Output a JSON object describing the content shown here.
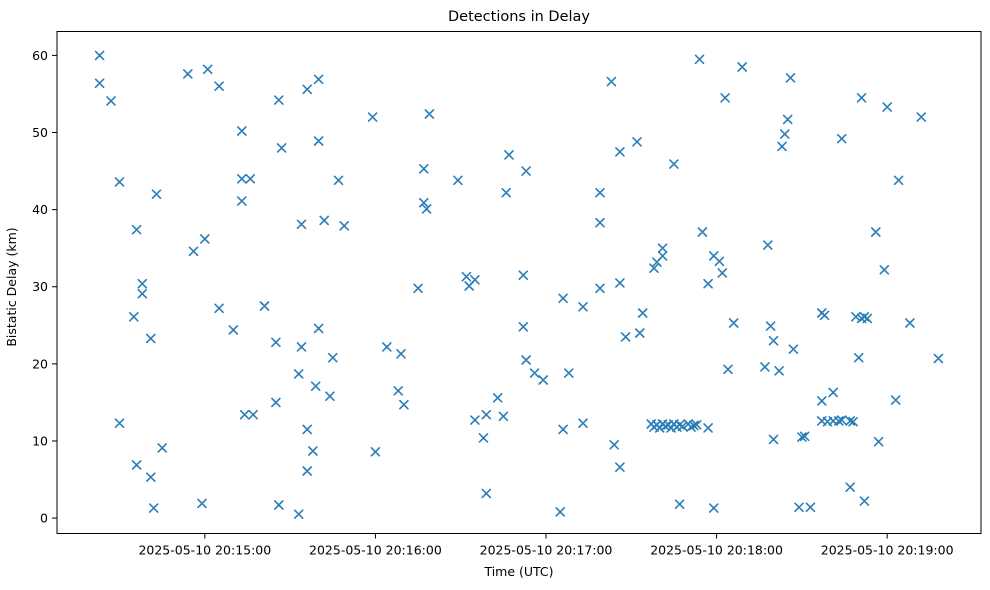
{
  "figure": {
    "title": "Detections in Delay",
    "xlabel": "Time (UTC)",
    "ylabel": "Bistatic Delay (km)",
    "background_color": "#ffffff",
    "spine_color": "#000000"
  },
  "chart_data": {
    "type": "scatter",
    "title": "Detections in Delay",
    "xlabel": "Time (UTC)",
    "ylabel": "Bistatic Delay (km)",
    "marker": "x",
    "marker_color": "#1f77b4",
    "grid": false,
    "legend": null,
    "x_unit": "seconds after 2025-05-10 20:14:00 UTC",
    "xlim": [
      8,
      333
    ],
    "ylim": [
      -2,
      63.1
    ],
    "x_ticks": [
      {
        "t": 60,
        "label": "2025-05-10 20:15:00"
      },
      {
        "t": 120,
        "label": "2025-05-10 20:16:00"
      },
      {
        "t": 180,
        "label": "2025-05-10 20:17:00"
      },
      {
        "t": 240,
        "label": "2025-05-10 20:18:00"
      },
      {
        "t": 300,
        "label": "2025-05-10 20:19:00"
      }
    ],
    "y_ticks": [
      0,
      10,
      20,
      30,
      40,
      50,
      60
    ],
    "points": [
      [
        23,
        60.0
      ],
      [
        23,
        56.4
      ],
      [
        27,
        54.1
      ],
      [
        30,
        43.6
      ],
      [
        30,
        12.3
      ],
      [
        35,
        26.1
      ],
      [
        36,
        37.4
      ],
      [
        36,
        6.9
      ],
      [
        38,
        30.4
      ],
      [
        38,
        29.1
      ],
      [
        41,
        23.3
      ],
      [
        41,
        5.3
      ],
      [
        42,
        1.3
      ],
      [
        43,
        42.0
      ],
      [
        45,
        9.1
      ],
      [
        54,
        57.6
      ],
      [
        56,
        34.6
      ],
      [
        59,
        1.9
      ],
      [
        60,
        36.2
      ],
      [
        61,
        58.2
      ],
      [
        65,
        56.0
      ],
      [
        65,
        27.2
      ],
      [
        70,
        24.4
      ],
      [
        73,
        41.1
      ],
      [
        73,
        44.0
      ],
      [
        73,
        50.2
      ],
      [
        74,
        13.4
      ],
      [
        76,
        44.0
      ],
      [
        77,
        13.4
      ],
      [
        81,
        27.5
      ],
      [
        85,
        22.8
      ],
      [
        85,
        15.0
      ],
      [
        86,
        54.2
      ],
      [
        86,
        1.7
      ],
      [
        87,
        48.0
      ],
      [
        93,
        0.5
      ],
      [
        93,
        18.7
      ],
      [
        94,
        22.2
      ],
      [
        94,
        38.1
      ],
      [
        96,
        11.5
      ],
      [
        96,
        6.1
      ],
      [
        96,
        55.6
      ],
      [
        98,
        8.7
      ],
      [
        99,
        17.1
      ],
      [
        100,
        56.9
      ],
      [
        100,
        24.6
      ],
      [
        100,
        48.9
      ],
      [
        102,
        38.6
      ],
      [
        104,
        15.8
      ],
      [
        105,
        20.8
      ],
      [
        107,
        43.8
      ],
      [
        109,
        37.9
      ],
      [
        119,
        52.0
      ],
      [
        120,
        8.6
      ],
      [
        124,
        22.2
      ],
      [
        128,
        16.5
      ],
      [
        129,
        21.3
      ],
      [
        130,
        14.7
      ],
      [
        135,
        29.8
      ],
      [
        137,
        40.9
      ],
      [
        137,
        45.3
      ],
      [
        138,
        40.1
      ],
      [
        139,
        52.4
      ],
      [
        149,
        43.8
      ],
      [
        152,
        31.3
      ],
      [
        153,
        30.1
      ],
      [
        155,
        30.9
      ],
      [
        155,
        12.7
      ],
      [
        158,
        10.4
      ],
      [
        159,
        13.4
      ],
      [
        159,
        3.2
      ],
      [
        163,
        15.6
      ],
      [
        165,
        13.2
      ],
      [
        166,
        42.2
      ],
      [
        167,
        47.1
      ],
      [
        172,
        31.5
      ],
      [
        172,
        24.8
      ],
      [
        173,
        20.5
      ],
      [
        173,
        45.0
      ],
      [
        176,
        18.8
      ],
      [
        179,
        17.9
      ],
      [
        185,
        0.8
      ],
      [
        186,
        28.5
      ],
      [
        186,
        11.5
      ],
      [
        188,
        18.8
      ],
      [
        193,
        27.4
      ],
      [
        193,
        12.3
      ],
      [
        199,
        29.8
      ],
      [
        199,
        38.3
      ],
      [
        199,
        42.2
      ],
      [
        203,
        56.6
      ],
      [
        204,
        9.5
      ],
      [
        206,
        30.5
      ],
      [
        206,
        6.6
      ],
      [
        206,
        47.5
      ],
      [
        208,
        23.5
      ],
      [
        212,
        48.8
      ],
      [
        213,
        24.0
      ],
      [
        214,
        26.6
      ],
      [
        217,
        12.2
      ],
      [
        218,
        32.4
      ],
      [
        218,
        11.8
      ],
      [
        219,
        33.2
      ],
      [
        219,
        12.1
      ],
      [
        220,
        11.7
      ],
      [
        221,
        35.0
      ],
      [
        221,
        34.0
      ],
      [
        221,
        12.2
      ],
      [
        222,
        11.9
      ],
      [
        223,
        12.1
      ],
      [
        224,
        11.7
      ],
      [
        225,
        12.2
      ],
      [
        225,
        45.9
      ],
      [
        226,
        11.8
      ],
      [
        227,
        12.1
      ],
      [
        227,
        1.8
      ],
      [
        228,
        11.9
      ],
      [
        230,
        12.2
      ],
      [
        231,
        11.8
      ],
      [
        232,
        12.0
      ],
      [
        233,
        12.1
      ],
      [
        234,
        59.5
      ],
      [
        235,
        37.1
      ],
      [
        237,
        11.7
      ],
      [
        237,
        30.4
      ],
      [
        239,
        34.0
      ],
      [
        239,
        1.3
      ],
      [
        241,
        33.3
      ],
      [
        242,
        31.8
      ],
      [
        243,
        54.5
      ],
      [
        244,
        19.3
      ],
      [
        246,
        25.3
      ],
      [
        249,
        58.5
      ],
      [
        257,
        19.6
      ],
      [
        258,
        35.4
      ],
      [
        259,
        24.9
      ],
      [
        260,
        23.0
      ],
      [
        260,
        10.2
      ],
      [
        262,
        19.1
      ],
      [
        263,
        48.2
      ],
      [
        264,
        49.8
      ],
      [
        265,
        51.7
      ],
      [
        266,
        57.1
      ],
      [
        267,
        21.9
      ],
      [
        269,
        1.4
      ],
      [
        270,
        10.5
      ],
      [
        271,
        10.6
      ],
      [
        273,
        1.4
      ],
      [
        277,
        15.2
      ],
      [
        277,
        12.6
      ],
      [
        277,
        26.6
      ],
      [
        278,
        26.3
      ],
      [
        279,
        12.5
      ],
      [
        281,
        16.3
      ],
      [
        281,
        12.6
      ],
      [
        283,
        12.6
      ],
      [
        284,
        12.7
      ],
      [
        284,
        49.2
      ],
      [
        287,
        12.6
      ],
      [
        287,
        4.0
      ],
      [
        288,
        12.5
      ],
      [
        289,
        26.1
      ],
      [
        290,
        20.8
      ],
      [
        291,
        25.9
      ],
      [
        291,
        54.5
      ],
      [
        292,
        26.1
      ],
      [
        292,
        2.2
      ],
      [
        293,
        25.9
      ],
      [
        296,
        37.1
      ],
      [
        297,
        9.9
      ],
      [
        299,
        32.2
      ],
      [
        300,
        53.3
      ],
      [
        303,
        15.3
      ],
      [
        304,
        43.8
      ],
      [
        308,
        25.3
      ],
      [
        312,
        52.0
      ],
      [
        318,
        20.7
      ]
    ]
  }
}
